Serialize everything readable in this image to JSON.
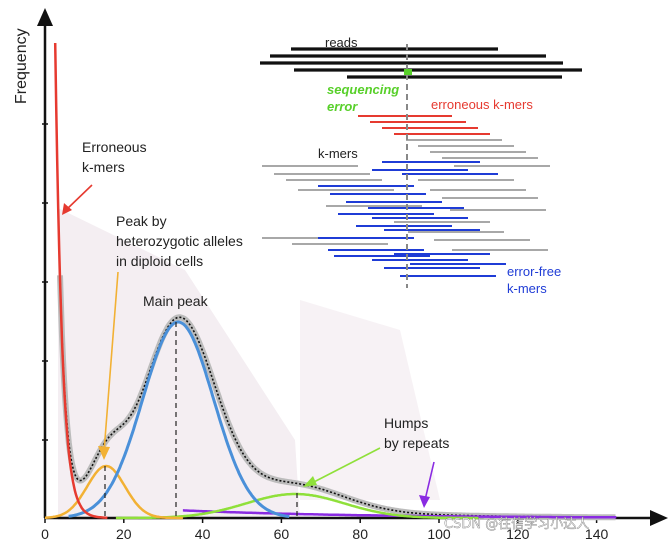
{
  "figure": {
    "axis": {
      "ylabel": "Frequency",
      "xticks": [
        "0",
        "20",
        "40",
        "60",
        "80",
        "100",
        "120",
        "140"
      ]
    },
    "annotations": {
      "erroneous": [
        "Erroneous",
        "k-mers"
      ],
      "heterozygous": [
        "Peak by",
        "heterozygotic alleles",
        "in diploid cells"
      ],
      "main_peak": "Main peak",
      "humps": [
        "Humps",
        "by repeats"
      ]
    },
    "inset": {
      "reads": "reads",
      "sequencing_error": [
        "sequencing",
        "error"
      ],
      "erroneous_kmers": "erroneous k-mers",
      "kmers": "k-mers",
      "error_free": [
        "error-free",
        "k-mers"
      ]
    },
    "watermark": "CSDN @往信学习小达人",
    "colors": {
      "red": "#e63a30",
      "orange": "#f2b134",
      "blue": "#4a90d9",
      "green": "#8fe03a",
      "purple": "#8a2be2",
      "inset_green": "#58d02a",
      "inset_blue": "#1f3cd6",
      "gray": "#a8a8a8"
    }
  }
}
